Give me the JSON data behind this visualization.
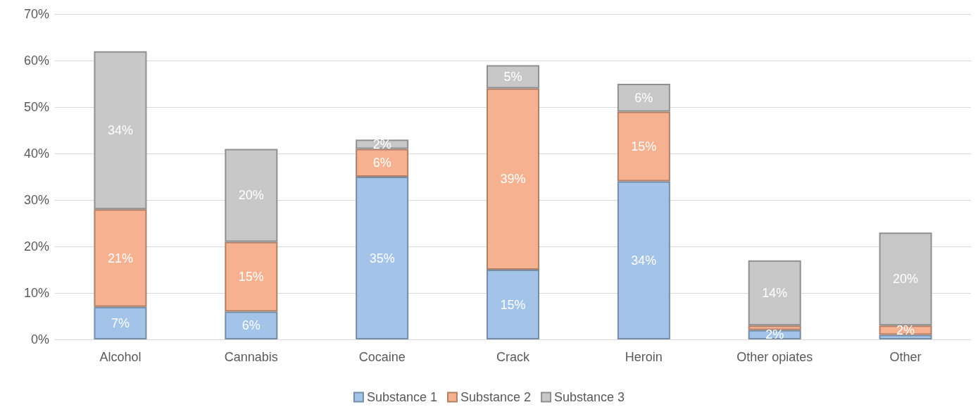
{
  "chart_data": {
    "type": "bar",
    "stacked": true,
    "categories": [
      "Alcohol",
      "Cannabis",
      "Cocaine",
      "Crack",
      "Heroin",
      "Other opiates",
      "Other"
    ],
    "series": [
      {
        "name": "Substance 1",
        "color": "#a3c4e8",
        "values": [
          7,
          6,
          35,
          15,
          34,
          2,
          1
        ],
        "value_labels": [
          "7%",
          "6%",
          "35%",
          "15%",
          "34%",
          "2%",
          null
        ]
      },
      {
        "name": "Substance 2",
        "color": "#f5b190",
        "values": [
          21,
          15,
          6,
          39,
          15,
          1,
          2
        ],
        "value_labels": [
          "21%",
          "15%",
          "6%",
          "39%",
          "15%",
          null,
          "2%"
        ]
      },
      {
        "name": "Substance 3",
        "color": "#c8c8c8",
        "values": [
          34,
          20,
          2,
          5,
          6,
          14,
          20
        ],
        "value_labels": [
          "34%",
          "20%",
          "2%",
          "5%",
          "6%",
          "14%",
          "20%"
        ]
      }
    ],
    "ylim": [
      0,
      70
    ],
    "yticks": [
      {
        "value": 0,
        "label": "0%"
      },
      {
        "value": 10,
        "label": "10%"
      },
      {
        "value": 20,
        "label": "20%"
      },
      {
        "value": 30,
        "label": "30%"
      },
      {
        "value": 40,
        "label": "40%"
      },
      {
        "value": 50,
        "label": "50%"
      },
      {
        "value": 60,
        "label": "60%"
      },
      {
        "value": 70,
        "label": "70%"
      }
    ],
    "grid": "y",
    "legend": "bottom"
  }
}
